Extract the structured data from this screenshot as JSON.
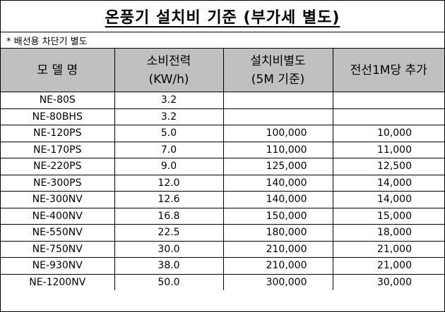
{
  "title": "온풍기 설치비 기준 (부가세 별도)",
  "note": "*  배선용 차단기 별도",
  "headers": {
    "model": "모  델  명",
    "power_line1": "소비전력",
    "power_line2": "(KW/h)",
    "install_line1": "설치비별도",
    "install_line2": "(5M 기준)",
    "extra": "전선1M당 추가"
  },
  "rows": [
    {
      "model": "NE-80S",
      "power": "3.2",
      "install": "",
      "extra": ""
    },
    {
      "model": "NE-80BHS",
      "power": "3.2",
      "install": "",
      "extra": ""
    },
    {
      "model": "NE-120PS",
      "power": "5.0",
      "install": "100,000",
      "extra": "10,000"
    },
    {
      "model": "NE-170PS",
      "power": "7.0",
      "install": "110,000",
      "extra": "11,000"
    },
    {
      "model": "NE-220PS",
      "power": "9.0",
      "install": "125,000",
      "extra": "12,500"
    },
    {
      "model": "NE-300PS",
      "power": "12.0",
      "install": "140,000",
      "extra": "14,000"
    },
    {
      "model": "NE-300NV",
      "power": "12.6",
      "install": "140,000",
      "extra": "14,000"
    },
    {
      "model": "NE-400NV",
      "power": "16.8",
      "install": "150,000",
      "extra": "15,000"
    },
    {
      "model": "NE-550NV",
      "power": "22.5",
      "install": "180,000",
      "extra": "18,000"
    },
    {
      "model": "NE-750NV",
      "power": "30.0",
      "install": "210,000",
      "extra": "21,000"
    },
    {
      "model": "NE-930NV",
      "power": "38.0",
      "install": "210,000",
      "extra": "21,000"
    },
    {
      "model": "NE-1200NV",
      "power": "50.0",
      "install": "300,000",
      "extra": "30,000"
    }
  ]
}
